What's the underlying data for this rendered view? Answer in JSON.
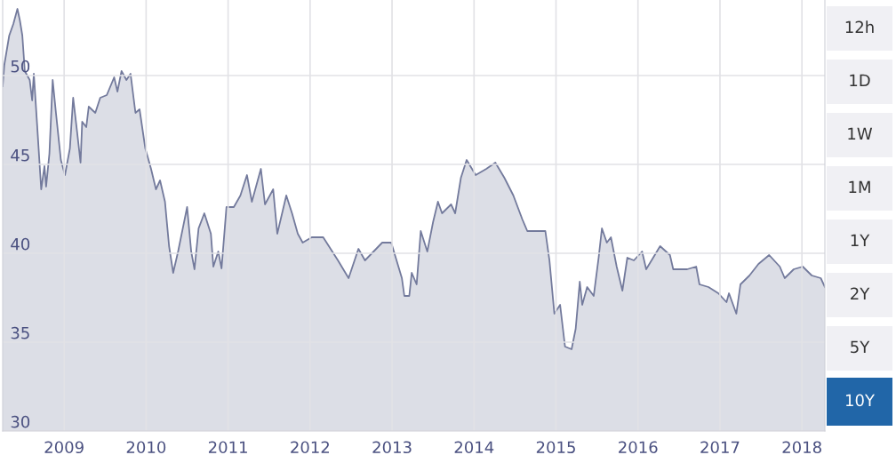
{
  "chart_data": {
    "type": "area",
    "x": [
      2008.25,
      2008.27,
      2008.33,
      2008.38,
      2008.43,
      2008.46,
      2008.49,
      2008.52,
      2008.58,
      2008.61,
      2008.63,
      2008.67,
      2008.72,
      2008.76,
      2008.78,
      2008.82,
      2008.86,
      2008.9,
      2008.96,
      2009.01,
      2009.07,
      2009.11,
      2009.16,
      2009.2,
      2009.22,
      2009.27,
      2009.3,
      2009.38,
      2009.44,
      2009.52,
      2009.61,
      2009.65,
      2009.7,
      2009.76,
      2009.81,
      2009.87,
      2009.92,
      2009.99,
      2010.06,
      2010.12,
      2010.17,
      2010.23,
      2010.28,
      2010.33,
      2010.39,
      2010.5,
      2010.55,
      2010.59,
      2010.64,
      2010.71,
      2010.79,
      2010.82,
      2010.88,
      2010.92,
      2010.98,
      2011.07,
      2011.15,
      2011.23,
      2011.29,
      2011.4,
      2011.45,
      2011.55,
      2011.6,
      2011.71,
      2011.78,
      2011.85,
      2011.91,
      2012.02,
      2012.16,
      2012.34,
      2012.47,
      2012.59,
      2012.67,
      2012.88,
      2012.99,
      2013.12,
      2013.15,
      2013.21,
      2013.24,
      2013.3,
      2013.35,
      2013.43,
      2013.5,
      2013.56,
      2013.61,
      2013.72,
      2013.77,
      2013.84,
      2013.91,
      2014.02,
      2014.15,
      2014.26,
      2014.37,
      2014.48,
      2014.59,
      2014.65,
      2014.76,
      2014.87,
      2014.92,
      2014.98,
      2015.05,
      2015.11,
      2015.19,
      2015.24,
      2015.29,
      2015.32,
      2015.38,
      2015.46,
      2015.52,
      2015.56,
      2015.62,
      2015.67,
      2015.74,
      2015.81,
      2015.87,
      2015.95,
      2016.05,
      2016.1,
      2016.27,
      2016.39,
      2016.43,
      2016.6,
      2016.71,
      2016.75,
      2016.86,
      2016.98,
      2017.08,
      2017.11,
      2017.2,
      2017.25,
      2017.36,
      2017.47,
      2017.6,
      2017.73,
      2017.79,
      2017.9,
      2018.01,
      2018.12,
      2018.23,
      2018.28
    ],
    "series": [
      {
        "color": "#737a9c",
        "values": [
          49.4,
          50.6,
          52.25,
          52.9,
          53.75,
          53.1,
          52.25,
          50.25,
          49.75,
          48.6,
          50.1,
          47.25,
          43.6,
          44.9,
          43.75,
          45.6,
          49.75,
          47.9,
          45.25,
          44.4,
          45.9,
          48.75,
          46.75,
          45.1,
          47.4,
          47.1,
          48.25,
          47.9,
          48.75,
          48.9,
          49.9,
          49.1,
          50.25,
          49.75,
          50.1,
          47.9,
          48.1,
          45.9,
          44.75,
          43.6,
          44.1,
          42.9,
          40.4,
          38.9,
          40.1,
          42.6,
          40.1,
          39.1,
          41.4,
          42.25,
          41.1,
          39.25,
          40.1,
          39.15,
          42.6,
          42.6,
          43.25,
          44.4,
          42.9,
          44.75,
          42.75,
          43.6,
          41.1,
          43.25,
          42.25,
          41.1,
          40.6,
          40.9,
          40.9,
          39.6,
          38.6,
          40.25,
          39.6,
          40.6,
          40.6,
          38.6,
          37.6,
          37.6,
          38.9,
          38.25,
          41.25,
          40.1,
          41.75,
          42.9,
          42.25,
          42.75,
          42.25,
          44.25,
          45.25,
          44.4,
          44.75,
          45.1,
          44.25,
          43.25,
          41.9,
          41.25,
          41.25,
          41.25,
          39.6,
          36.6,
          37.1,
          34.75,
          34.6,
          35.75,
          38.4,
          37.1,
          38.1,
          37.6,
          39.75,
          41.4,
          40.6,
          40.9,
          39.25,
          37.9,
          39.75,
          39.6,
          40.1,
          39.1,
          40.4,
          39.9,
          39.1,
          39.1,
          39.25,
          38.25,
          38.1,
          37.75,
          37.25,
          37.75,
          36.6,
          38.25,
          38.75,
          39.4,
          39.9,
          39.25,
          38.6,
          39.1,
          39.25,
          38.75,
          38.6,
          38.1
        ]
      }
    ],
    "xlim": [
      2008.25,
      2018.28
    ],
    "xticks": [
      2009,
      2010,
      2011,
      2012,
      2013,
      2014,
      2015,
      2016,
      2017,
      2018
    ],
    "ylim": [
      30,
      54.25
    ],
    "yticks": [
      30,
      35,
      40,
      45,
      50
    ],
    "grid": true,
    "annotations": [
      "12h",
      "1D",
      "1W",
      "1M",
      "1Y",
      "2Y",
      "5Y",
      "10Y"
    ]
  }
}
